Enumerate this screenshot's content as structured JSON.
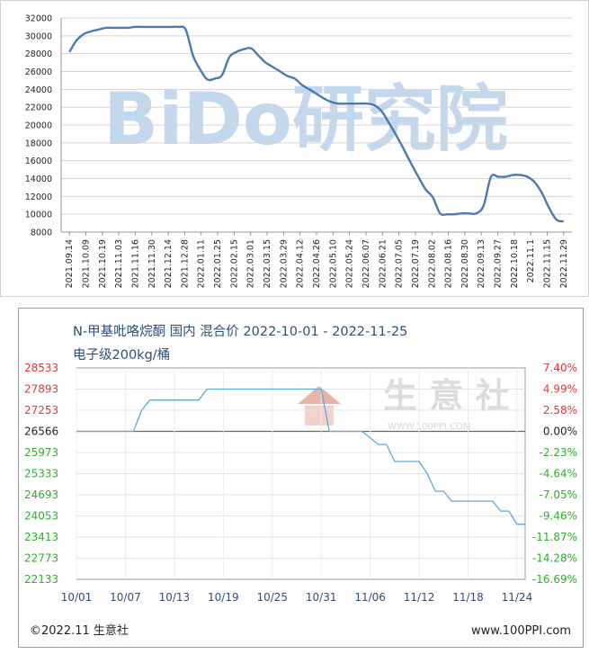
{
  "chart_data": [
    {
      "type": "line",
      "watermark": "BiDo研究院",
      "ylim": [
        8000,
        32000
      ],
      "y_ticks": [
        "32000",
        "30000",
        "28000",
        "26000",
        "24000",
        "22000",
        "20000",
        "18000",
        "16000",
        "14000",
        "12000",
        "10000",
        "8000"
      ],
      "x_ticks": [
        "2021.09.14",
        "2021.10.09",
        "2021.10.19",
        "2021.11.03",
        "2021.11.16",
        "2021.11.30",
        "2021.12.14",
        "2021.12.28",
        "2022.01.11",
        "2022.01.25",
        "2022.02.15",
        "2022.03.01",
        "2022.03.15",
        "2022.03.29",
        "2022.04.12",
        "2022.04.26",
        "2022.05.10",
        "2022.05.24",
        "2022.06.07",
        "2022.06.21",
        "2022.07.05",
        "2022.07.19",
        "2022.08.02",
        "2022.08.16",
        "2022.08.30",
        "2022.09.13",
        "2022.09.27",
        "2022.10.18",
        "2022.11.1",
        "2022.11.15",
        "2022.11.29"
      ],
      "line_color": "#4a7ab5",
      "series": [
        {
          "values": [
            28200,
            29500,
            30200,
            30500,
            30700,
            30900,
            30900,
            30900,
            30900,
            31000,
            31000,
            31000,
            31000,
            31000,
            31000,
            31000,
            30700,
            27800,
            26200,
            25100,
            25200,
            25600,
            27600,
            28200,
            28500,
            28600,
            27800,
            27000,
            26500,
            26000,
            25500,
            25200,
            24500,
            24000,
            23500,
            23000,
            22600,
            22400,
            22400,
            22400,
            22400,
            22400,
            22200,
            21500,
            20200,
            18800,
            17300,
            15700,
            14200,
            12800,
            11900,
            10100,
            10000,
            10000,
            10100,
            10100,
            10100,
            11000,
            14200,
            14200,
            14200,
            14400,
            14400,
            14200,
            13600,
            12400,
            10700,
            9400,
            9200
          ]
        }
      ]
    },
    {
      "type": "line",
      "title": "N-甲基吡咯烷酮 国内 混合价 2022-10-01 - 2022-11-25",
      "subtitle": "电子级200kg/桶",
      "watermark": "生 意 社",
      "watermark_url": "WWW.100PPI.COM",
      "ylim": [
        22133,
        28533
      ],
      "baseline": 26566,
      "y_ticks_left": [
        "28533",
        "27893",
        "27253",
        "26566",
        "25973",
        "25333",
        "24693",
        "24053",
        "23413",
        "22773",
        "22133"
      ],
      "y_ticks_right": [
        "7.40%",
        "4.99%",
        "2.58%",
        "0.00%",
        "-2.23%",
        "-4.64%",
        "-7.05%",
        "-9.46%",
        "-11.87%",
        "-14.28%",
        "-16.69%"
      ],
      "x_ticks": [
        "10/01",
        "10/07",
        "10/13",
        "10/19",
        "10/25",
        "10/31",
        "11/06",
        "11/12",
        "11/18",
        "11/24"
      ],
      "line_color": "#5fa8d8",
      "series": [
        {
          "x": [
            "10/01",
            "10/08",
            "10/09",
            "10/10",
            "10/11",
            "10/16",
            "10/17",
            "10/31",
            "11/01",
            "11/04",
            "11/05",
            "11/07",
            "11/08",
            "11/09",
            "11/12",
            "11/13",
            "11/14",
            "11/15",
            "11/16",
            "11/17",
            "11/21",
            "11/22",
            "11/23",
            "11/24",
            "11/25"
          ],
          "values": [
            26566,
            26566,
            27253,
            27560,
            27560,
            27560,
            27893,
            27893,
            26566,
            26566,
            26566,
            26200,
            26200,
            25700,
            25700,
            25333,
            24800,
            24800,
            24500,
            24500,
            24500,
            24200,
            24200,
            23800,
            23800
          ]
        }
      ]
    }
  ],
  "footer": {
    "copyright": "©2022.11 生意社",
    "website": "www.100PPI.com"
  }
}
